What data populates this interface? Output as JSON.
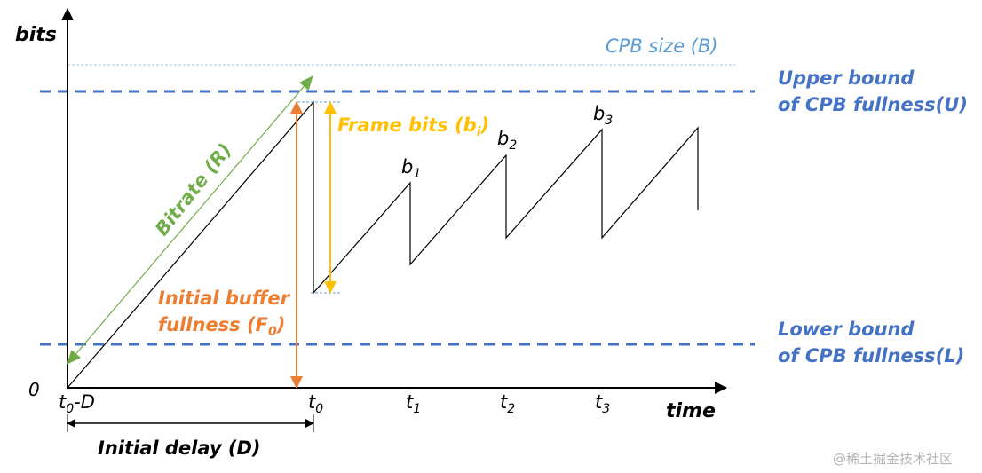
{
  "axes": {
    "y_label": "bits",
    "x_label": "time",
    "origin": "0"
  },
  "x_ticks": [
    {
      "base": "t",
      "sub": "0",
      "suffix": "-D"
    },
    {
      "base": "t",
      "sub": "0",
      "suffix": ""
    },
    {
      "base": "t",
      "sub": "1",
      "suffix": ""
    },
    {
      "base": "t",
      "sub": "2",
      "suffix": ""
    },
    {
      "base": "t",
      "sub": "3",
      "suffix": ""
    }
  ],
  "peaks": [
    {
      "base": "b",
      "sub": "1"
    },
    {
      "base": "b",
      "sub": "2"
    },
    {
      "base": "b",
      "sub": "3"
    }
  ],
  "labels": {
    "cpb_size": "CPB size (B)",
    "upper_bound_1": "Upper bound",
    "upper_bound_2": "of CPB fullness(U)",
    "lower_bound_1": "Lower bound",
    "lower_bound_2": "of CPB fullness(L)",
    "bitrate": "Bitrate (R)",
    "frame_bits_prefix": "Frame bits (b",
    "frame_bits_sub": "i",
    "frame_bits_suffix": ")",
    "initial_fullness_1": "Initial buffer",
    "initial_fullness_2_prefix": "fullness (F",
    "initial_fullness_2_sub": "0",
    "initial_fullness_2_suffix": ")",
    "initial_delay": "Initial delay (D)"
  },
  "watermark": "@稀土掘金技术社区",
  "colors": {
    "cpb_size": "#5b9bd5",
    "bounds": "#4472c4",
    "bitrate": "#70ad47",
    "frame_bits": "#ffc000",
    "initial_fullness": "#ed7d31",
    "axis": "#000000"
  }
}
